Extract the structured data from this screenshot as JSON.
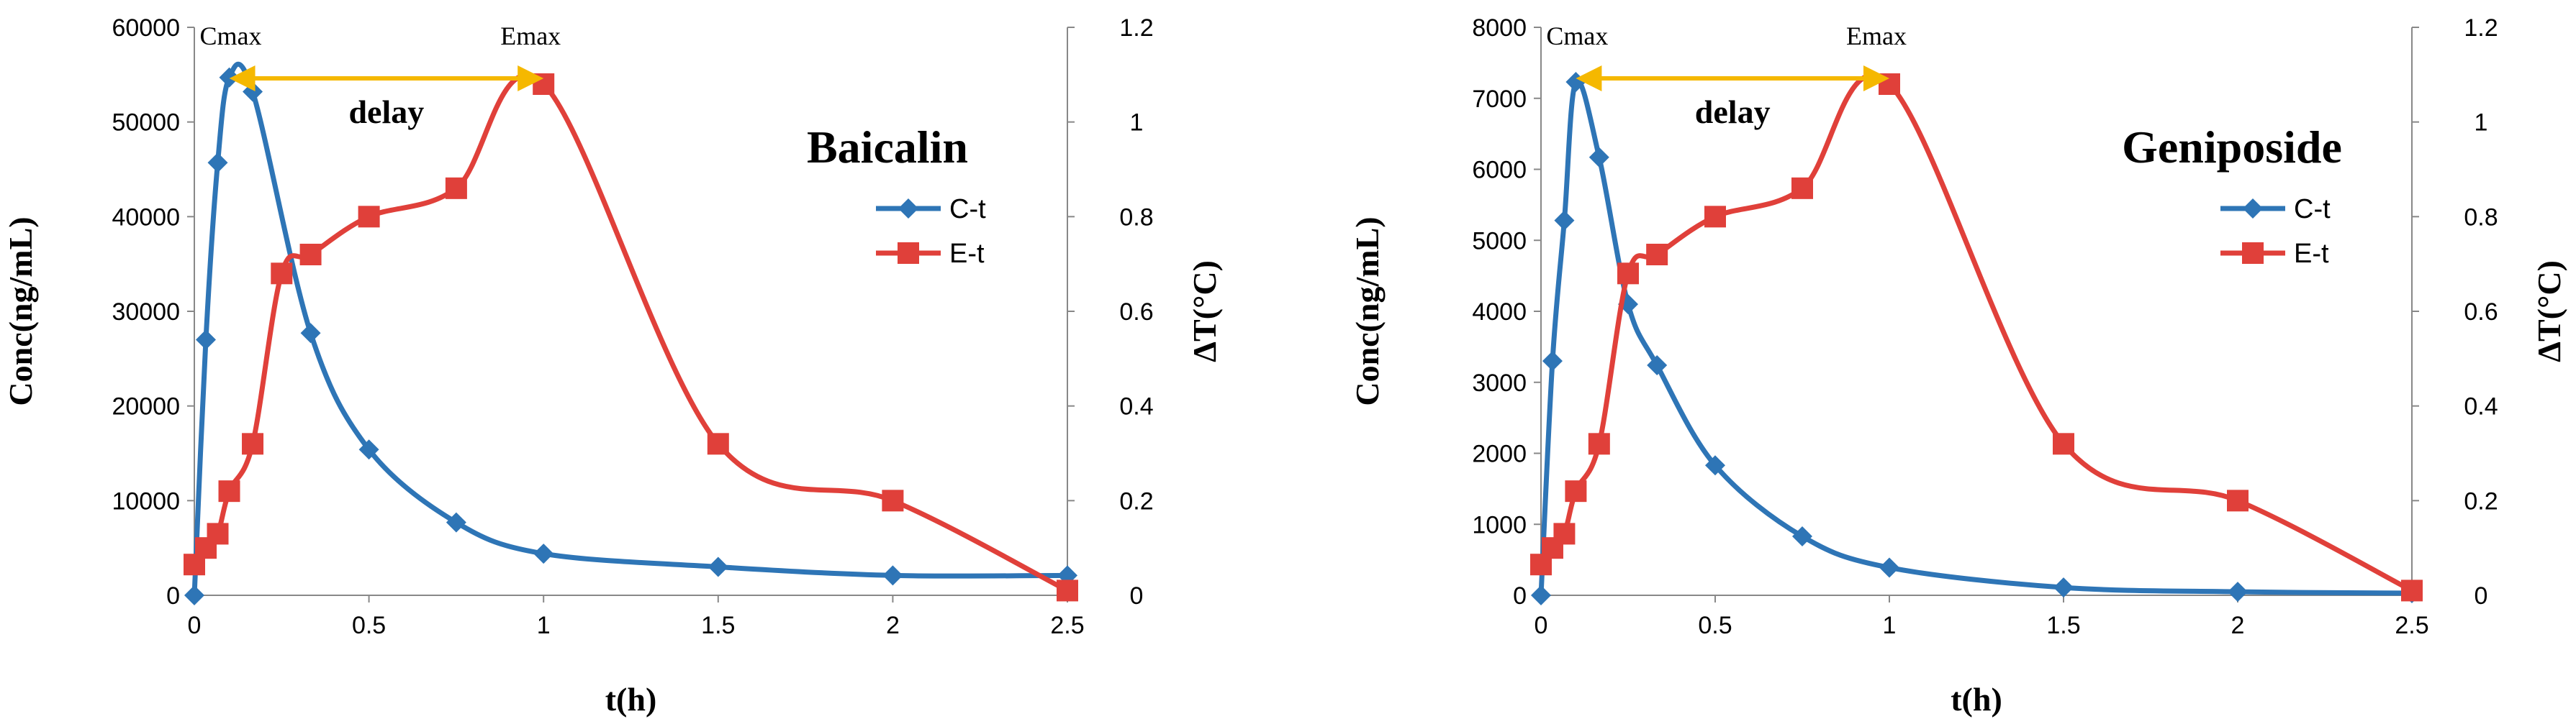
{
  "chart_data": [
    {
      "type": "line",
      "title": "Baicalin",
      "xlabel": "t(h)",
      "ylabel": "Conc(ng/mL)",
      "y2label": "ΔT(°C)",
      "xlim": [
        0,
        2.5
      ],
      "ylim": [
        0,
        60000
      ],
      "y2lim": [
        0,
        1.2
      ],
      "x_ticks": [
        "0",
        "0.5",
        "1",
        "1.5",
        "2",
        "2.5"
      ],
      "y_ticks": [
        "0",
        "10000",
        "20000",
        "30000",
        "40000",
        "50000",
        "60000"
      ],
      "y2_ticks": [
        "0",
        "0.2",
        "0.4",
        "0.6",
        "0.8",
        "1",
        "1.2"
      ],
      "grid": false,
      "legend_position": "middle-right",
      "series": [
        {
          "name": "C-t",
          "axis": "left",
          "color": "#2E75B6",
          "marker": "diamond",
          "x": [
            0,
            0.033,
            0.067,
            0.1,
            0.167,
            0.333,
            0.5,
            0.75,
            1,
            1.5,
            2,
            2.5
          ],
          "values": [
            0,
            27000,
            45700,
            54700,
            53200,
            27700,
            15400,
            7700,
            4400,
            3000,
            2100,
            2100
          ]
        },
        {
          "name": "E-t",
          "axis": "right",
          "color": "#E0403A",
          "marker": "square",
          "x": [
            0,
            0.033,
            0.067,
            0.1,
            0.167,
            0.25,
            0.333,
            0.5,
            0.75,
            1,
            1.5,
            2,
            2.5
          ],
          "values": [
            0.065,
            0.1,
            0.13,
            0.22,
            0.32,
            0.68,
            0.72,
            0.8,
            0.86,
            1.08,
            0.32,
            0.2,
            0.01
          ]
        }
      ],
      "annotations": {
        "cmax_label": "Cmax",
        "emax_label": "Emax",
        "delay_label": "delay",
        "arrow_color": "#F5B800",
        "arrow_from_x": 0.1,
        "arrow_to_x": 1.0,
        "arrow_y": 1.08
      }
    },
    {
      "type": "line",
      "title": "Geniposide",
      "xlabel": "t(h)",
      "ylabel": "Conc(ng/mL)",
      "y2label": "ΔT(°C)",
      "xlim": [
        0,
        2.5
      ],
      "ylim": [
        0,
        8000
      ],
      "y2lim": [
        0,
        1.2
      ],
      "x_ticks": [
        "0",
        "0.5",
        "1",
        "1.5",
        "2",
        "2.5"
      ],
      "y_ticks": [
        "0",
        "1000",
        "2000",
        "3000",
        "4000",
        "5000",
        "6000",
        "7000",
        "8000"
      ],
      "y2_ticks": [
        "0",
        "0.2",
        "0.4",
        "0.6",
        "0.8",
        "1",
        "1.2"
      ],
      "grid": false,
      "legend_position": "middle-right",
      "series": [
        {
          "name": "C-t",
          "axis": "left",
          "color": "#2E75B6",
          "marker": "diamond",
          "x": [
            0,
            0.033,
            0.067,
            0.1,
            0.167,
            0.25,
            0.333,
            0.5,
            0.75,
            1,
            1.5,
            2,
            2.5
          ],
          "values": [
            0,
            3300,
            5280,
            7230,
            6170,
            4100,
            3240,
            1830,
            830,
            390,
            110,
            50,
            30
          ]
        },
        {
          "name": "E-t",
          "axis": "right",
          "color": "#E0403A",
          "marker": "square",
          "x": [
            0,
            0.033,
            0.067,
            0.1,
            0.167,
            0.25,
            0.333,
            0.5,
            0.75,
            1,
            1.5,
            2,
            2.5
          ],
          "values": [
            0.065,
            0.1,
            0.13,
            0.22,
            0.32,
            0.68,
            0.72,
            0.8,
            0.86,
            1.08,
            0.32,
            0.2,
            0.01
          ]
        }
      ],
      "annotations": {
        "cmax_label": "Cmax",
        "emax_label": "Emax",
        "delay_label": "delay",
        "arrow_color": "#F5B800",
        "arrow_from_x": 0.1,
        "arrow_to_x": 1.0,
        "arrow_y": 1.08
      }
    }
  ]
}
